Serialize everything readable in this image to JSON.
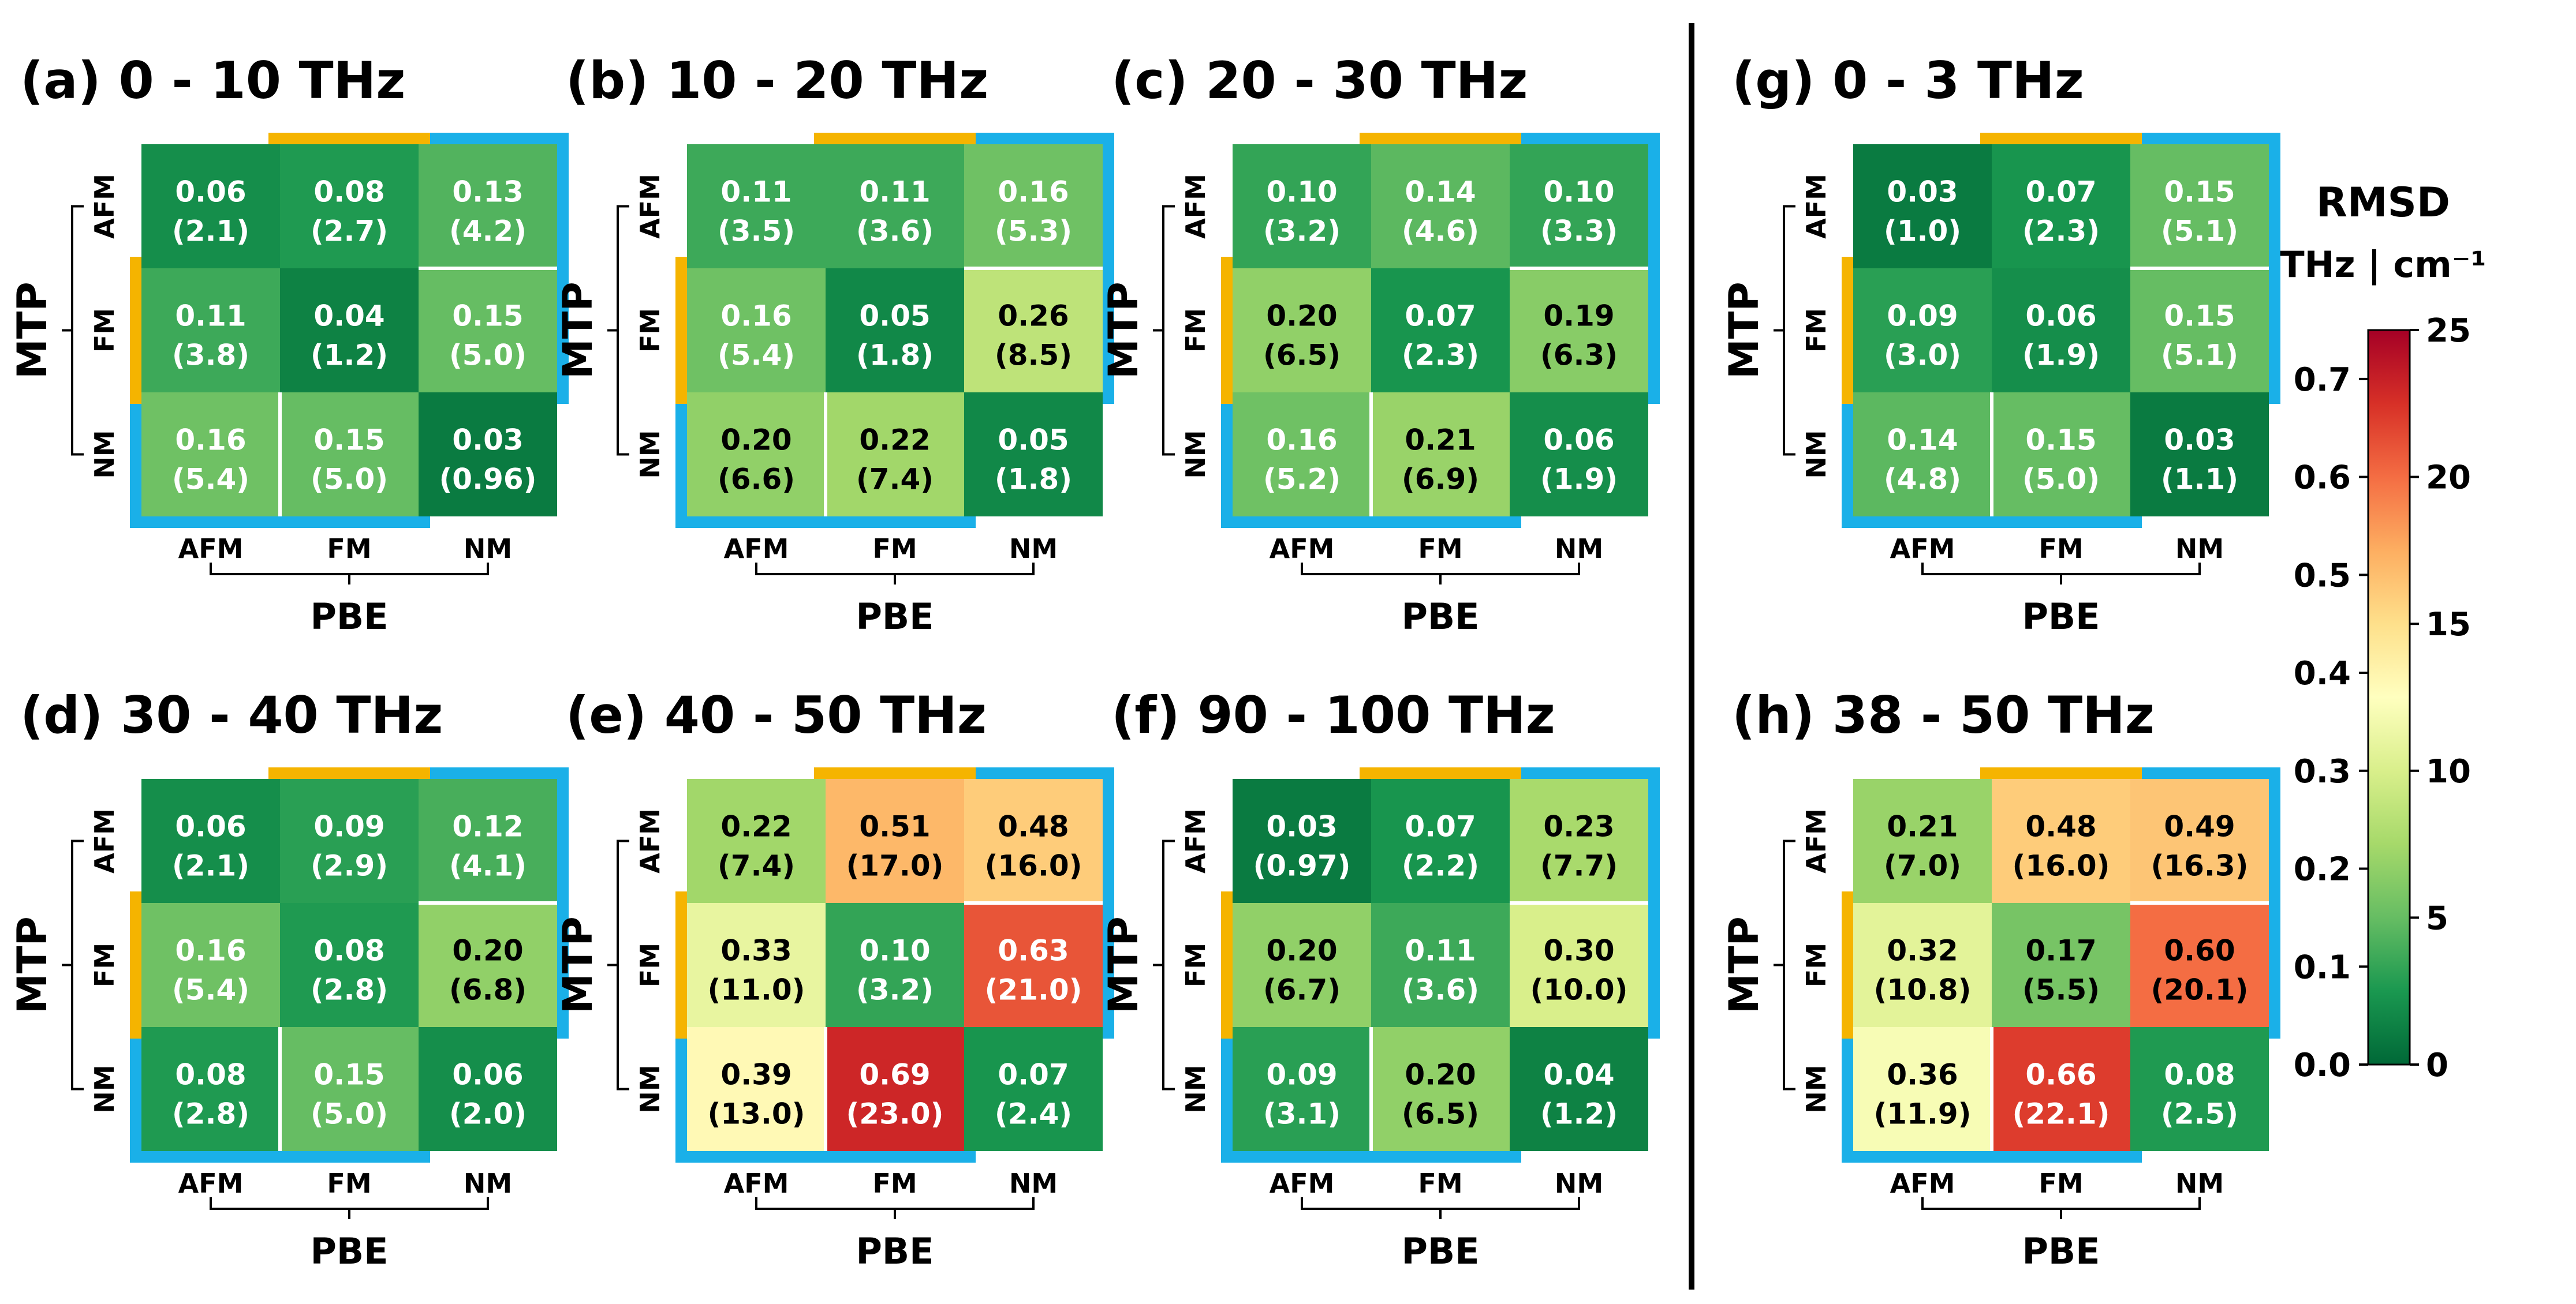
{
  "colorbar": {
    "title_line1": "RMSD",
    "title_line2": "THz | cm⁻¹",
    "left_ticks": [
      "0.7",
      "0.6",
      "0.5",
      "0.4",
      "0.3",
      "0.2",
      "0.1",
      "0.0"
    ],
    "right_ticks": [
      "25",
      "20",
      "15",
      "10",
      "5",
      "0"
    ],
    "thz_max": 0.75,
    "cm_max": 25,
    "stops": [
      "#006837",
      "#1a9850",
      "#66bd63",
      "#a6d96a",
      "#d9ef8b",
      "#ffffbf",
      "#fee08b",
      "#fdae61",
      "#f46d43",
      "#d73027",
      "#a50026"
    ]
  },
  "highlight_colors": {
    "orange": "#f5b400",
    "blue": "#1ab0e8"
  },
  "chart_data": [
    {
      "type": "heatmap",
      "title": "(a) 0 - 10 THz",
      "xlabel": "PBE",
      "ylabel": "MTP",
      "x_categories": [
        "AFM",
        "FM",
        "NM"
      ],
      "y_categories": [
        "AFM",
        "FM",
        "NM"
      ],
      "values_thz": [
        [
          0.06,
          0.08,
          0.13
        ],
        [
          0.11,
          0.04,
          0.15
        ],
        [
          0.16,
          0.15,
          0.03
        ]
      ],
      "labels_thz": [
        [
          "0.06",
          "0.08",
          "0.13"
        ],
        [
          "0.11",
          "0.04",
          "0.15"
        ],
        [
          "0.16",
          "0.15",
          "0.03"
        ]
      ],
      "labels_cm": [
        [
          "(2.1)",
          "(2.7)",
          "(4.2)"
        ],
        [
          "(3.8)",
          "(1.2)",
          "(5.0)"
        ],
        [
          "(5.4)",
          "(5.0)",
          "(0.96)"
        ]
      ]
    },
    {
      "type": "heatmap",
      "title": "(b) 10 - 20 THz",
      "xlabel": "PBE",
      "ylabel": "MTP",
      "x_categories": [
        "AFM",
        "FM",
        "NM"
      ],
      "y_categories": [
        "AFM",
        "FM",
        "NM"
      ],
      "values_thz": [
        [
          0.11,
          0.11,
          0.16
        ],
        [
          0.16,
          0.05,
          0.26
        ],
        [
          0.2,
          0.22,
          0.05
        ]
      ],
      "labels_thz": [
        [
          "0.11",
          "0.11",
          "0.16"
        ],
        [
          "0.16",
          "0.05",
          "0.26"
        ],
        [
          "0.20",
          "0.22",
          "0.05"
        ]
      ],
      "labels_cm": [
        [
          "(3.5)",
          "(3.6)",
          "(5.3)"
        ],
        [
          "(5.4)",
          "(1.8)",
          "(8.5)"
        ],
        [
          "(6.6)",
          "(7.4)",
          "(1.8)"
        ]
      ]
    },
    {
      "type": "heatmap",
      "title": "(c) 20 - 30 THz",
      "xlabel": "PBE",
      "ylabel": "MTP",
      "x_categories": [
        "AFM",
        "FM",
        "NM"
      ],
      "y_categories": [
        "AFM",
        "FM",
        "NM"
      ],
      "values_thz": [
        [
          0.1,
          0.14,
          0.1
        ],
        [
          0.2,
          0.07,
          0.19
        ],
        [
          0.16,
          0.21,
          0.06
        ]
      ],
      "labels_thz": [
        [
          "0.10",
          "0.14",
          "0.10"
        ],
        [
          "0.20",
          "0.07",
          "0.19"
        ],
        [
          "0.16",
          "0.21",
          "0.06"
        ]
      ],
      "labels_cm": [
        [
          "(3.2)",
          "(4.6)",
          "(3.3)"
        ],
        [
          "(6.5)",
          "(2.3)",
          "(6.3)"
        ],
        [
          "(5.2)",
          "(6.9)",
          "(1.9)"
        ]
      ]
    },
    {
      "type": "heatmap",
      "title": "(d) 30 - 40 THz",
      "xlabel": "PBE",
      "ylabel": "MTP",
      "x_categories": [
        "AFM",
        "FM",
        "NM"
      ],
      "y_categories": [
        "AFM",
        "FM",
        "NM"
      ],
      "values_thz": [
        [
          0.06,
          0.09,
          0.12
        ],
        [
          0.16,
          0.08,
          0.2
        ],
        [
          0.08,
          0.15,
          0.06
        ]
      ],
      "labels_thz": [
        [
          "0.06",
          "0.09",
          "0.12"
        ],
        [
          "0.16",
          "0.08",
          "0.20"
        ],
        [
          "0.08",
          "0.15",
          "0.06"
        ]
      ],
      "labels_cm": [
        [
          "(2.1)",
          "(2.9)",
          "(4.1)"
        ],
        [
          "(5.4)",
          "(2.8)",
          "(6.8)"
        ],
        [
          "(2.8)",
          "(5.0)",
          "(2.0)"
        ]
      ]
    },
    {
      "type": "heatmap",
      "title": "(e) 40 - 50 THz",
      "xlabel": "PBE",
      "ylabel": "MTP",
      "x_categories": [
        "AFM",
        "FM",
        "NM"
      ],
      "y_categories": [
        "AFM",
        "FM",
        "NM"
      ],
      "values_thz": [
        [
          0.22,
          0.51,
          0.48
        ],
        [
          0.33,
          0.1,
          0.63
        ],
        [
          0.39,
          0.69,
          0.07
        ]
      ],
      "labels_thz": [
        [
          "0.22",
          "0.51",
          "0.48"
        ],
        [
          "0.33",
          "0.10",
          "0.63"
        ],
        [
          "0.39",
          "0.69",
          "0.07"
        ]
      ],
      "labels_cm": [
        [
          "(7.4)",
          "(17.0)",
          "(16.0)"
        ],
        [
          "(11.0)",
          "(3.2)",
          "(21.0)"
        ],
        [
          "(13.0)",
          "(23.0)",
          "(2.4)"
        ]
      ]
    },
    {
      "type": "heatmap",
      "title": "(f) 90 - 100 THz",
      "xlabel": "PBE",
      "ylabel": "MTP",
      "x_categories": [
        "AFM",
        "FM",
        "NM"
      ],
      "y_categories": [
        "AFM",
        "FM",
        "NM"
      ],
      "values_thz": [
        [
          0.03,
          0.07,
          0.23
        ],
        [
          0.2,
          0.11,
          0.3
        ],
        [
          0.09,
          0.2,
          0.04
        ]
      ],
      "labels_thz": [
        [
          "0.03",
          "0.07",
          "0.23"
        ],
        [
          "0.20",
          "0.11",
          "0.30"
        ],
        [
          "0.09",
          "0.20",
          "0.04"
        ]
      ],
      "labels_cm": [
        [
          "(0.97)",
          "(2.2)",
          "(7.7)"
        ],
        [
          "(6.7)",
          "(3.6)",
          "(10.0)"
        ],
        [
          "(3.1)",
          "(6.5)",
          "(1.2)"
        ]
      ]
    },
    {
      "type": "heatmap",
      "title": "(g) 0 - 3 THz",
      "xlabel": "PBE",
      "ylabel": "MTP",
      "x_categories": [
        "AFM",
        "FM",
        "NM"
      ],
      "y_categories": [
        "AFM",
        "FM",
        "NM"
      ],
      "values_thz": [
        [
          0.03,
          0.07,
          0.15
        ],
        [
          0.09,
          0.06,
          0.15
        ],
        [
          0.14,
          0.15,
          0.03
        ]
      ],
      "labels_thz": [
        [
          "0.03",
          "0.07",
          "0.15"
        ],
        [
          "0.09",
          "0.06",
          "0.15"
        ],
        [
          "0.14",
          "0.15",
          "0.03"
        ]
      ],
      "labels_cm": [
        [
          "(1.0)",
          "(2.3)",
          "(5.1)"
        ],
        [
          "(3.0)",
          "(1.9)",
          "(5.1)"
        ],
        [
          "(4.8)",
          "(5.0)",
          "(1.1)"
        ]
      ]
    },
    {
      "type": "heatmap",
      "title": "(h) 38 - 50 THz",
      "xlabel": "PBE",
      "ylabel": "MTP",
      "x_categories": [
        "AFM",
        "FM",
        "NM"
      ],
      "y_categories": [
        "AFM",
        "FM",
        "NM"
      ],
      "values_thz": [
        [
          0.21,
          0.48,
          0.49
        ],
        [
          0.32,
          0.17,
          0.6
        ],
        [
          0.36,
          0.66,
          0.08
        ]
      ],
      "labels_thz": [
        [
          "0.21",
          "0.48",
          "0.49"
        ],
        [
          "0.32",
          "0.17",
          "0.60"
        ],
        [
          "0.36",
          "0.66",
          "0.08"
        ]
      ],
      "labels_cm": [
        [
          "(7.0)",
          "(16.0)",
          "(16.3)"
        ],
        [
          "(10.8)",
          "(5.5)",
          "(20.1)"
        ],
        [
          "(11.9)",
          "(22.1)",
          "(2.5)"
        ]
      ]
    }
  ]
}
